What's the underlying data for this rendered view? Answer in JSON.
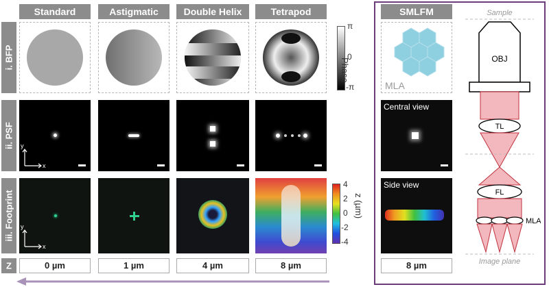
{
  "columns": [
    {
      "title": "Standard",
      "z": "0 µm"
    },
    {
      "title": "Astigmatic",
      "z": "1 µm"
    },
    {
      "title": "Double Helix",
      "z": "4 µm"
    },
    {
      "title": "Tetrapod",
      "z": "8 µm"
    }
  ],
  "rows": {
    "bfp": "i. BFP",
    "psf": "ii. PSF",
    "footprint": "iii. Footprint",
    "z": "Z"
  },
  "phase_bar": {
    "label": "Phase",
    "ticks": [
      "π",
      "0",
      "-π"
    ]
  },
  "z_bar": {
    "label": "z (µm)",
    "ticks": [
      "4",
      "2",
      "0",
      "-2",
      "-4"
    ]
  },
  "axes": {
    "y": "y",
    "x": "x"
  },
  "smlfm": {
    "title": "SMLFM",
    "mla_label": "MLA",
    "central_view": "Central view",
    "side_view": "Side view",
    "z": "8 µm"
  },
  "optics": {
    "sample": "Sample",
    "obj": "OBJ",
    "tl": "TL",
    "fl": "FL",
    "mla": "MLA",
    "image_plane": "Image plane"
  },
  "colors": {
    "frame": "#6a3d7a",
    "header": "#8c8c8c",
    "beam": "#f2b8be",
    "beam_edge": "#c0303c",
    "lens": "#8ecfe0"
  }
}
